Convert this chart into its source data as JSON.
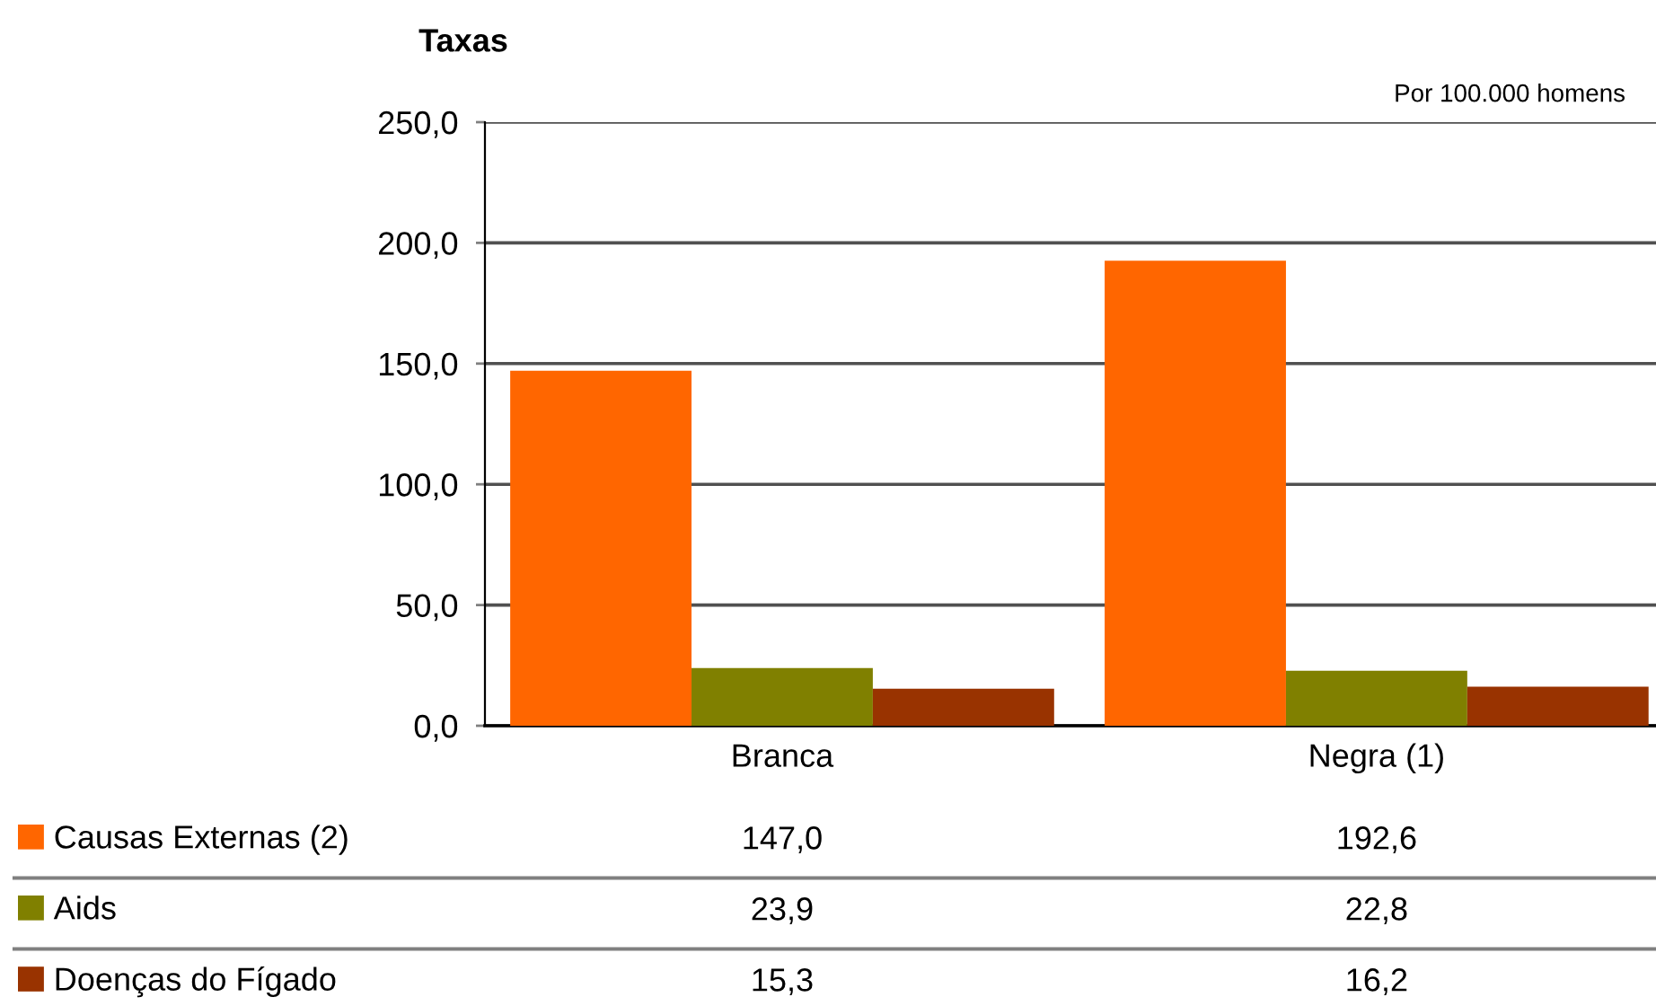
{
  "chart_data": {
    "type": "bar",
    "ylabel": "Taxas",
    "annotations": [
      "Por 100.000 homens"
    ],
    "categories": [
      "Branca",
      "Negra (1)"
    ],
    "series": [
      {
        "name": "Causas Externas (2)",
        "color": "#ff6600",
        "values": [
          147.0,
          192.6
        ],
        "value_labels": [
          "147,0",
          "192,6"
        ]
      },
      {
        "name": "Aids",
        "color": "#808000",
        "values": [
          23.9,
          22.8
        ],
        "value_labels": [
          "23,9",
          "22,8"
        ]
      },
      {
        "name": "Doenças do Fígado",
        "color": "#993300",
        "values": [
          15.3,
          16.2
        ],
        "value_labels": [
          "15,3",
          "16,2"
        ]
      }
    ],
    "ylim": [
      0,
      250
    ],
    "yticks": [
      {
        "value": 0,
        "label": "0,0"
      },
      {
        "value": 50,
        "label": "50,0"
      },
      {
        "value": 100,
        "label": "100,0"
      },
      {
        "value": 150,
        "label": "150,0"
      },
      {
        "value": 200,
        "label": "200,0"
      },
      {
        "value": 250,
        "label": "250,0"
      }
    ],
    "grid": "y",
    "legend": "bottom"
  }
}
